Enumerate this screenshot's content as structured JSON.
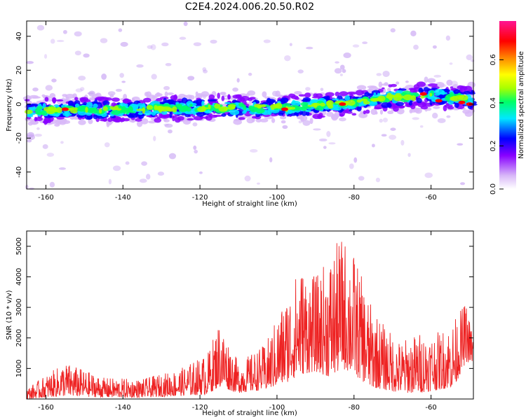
{
  "title": "C2E4.2024.006.20.50.R02",
  "chart_data": [
    {
      "type": "heatmap",
      "name": "spectrogram",
      "xlabel": "Height of straight line (km)",
      "ylabel": "Frequency (Hz)",
      "xlim": [
        -165,
        -49
      ],
      "ylim": [
        -50,
        49
      ],
      "x_ticks": [
        -160,
        -140,
        -120,
        -100,
        -80,
        -60
      ],
      "y_ticks": [
        -40,
        -20,
        0,
        20,
        40
      ],
      "ridge_center_hz": [
        {
          "x": -165,
          "y": -4
        },
        {
          "x": -140,
          "y": -3
        },
        {
          "x": -120,
          "y": -2
        },
        {
          "x": -100,
          "y": -2
        },
        {
          "x": -90,
          "y": -1
        },
        {
          "x": -80,
          "y": 1
        },
        {
          "x": -70,
          "y": 4
        },
        {
          "x": -60,
          "y": 5
        },
        {
          "x": -50,
          "y": 3
        }
      ],
      "colorbar": {
        "label": "Normalized spectral amplitude",
        "range": [
          0,
          0.78
        ],
        "ticks": [
          0.0,
          0.2,
          0.4,
          0.6
        ],
        "colormap": [
          "#ffffff",
          "#d8b8f8",
          "#8800ff",
          "#0000ff",
          "#00e8ff",
          "#00ff66",
          "#a8ff00",
          "#ffff00",
          "#ff8800",
          "#ff0000",
          "#ff1493"
        ]
      },
      "grid": false
    },
    {
      "type": "line",
      "name": "snr",
      "xlabel": "Height of straight line (km)",
      "ylabel": "SNR (10 * v/v)",
      "xlim": [
        -165,
        -49
      ],
      "ylim": [
        0,
        5500
      ],
      "x_ticks": [
        -160,
        -140,
        -120,
        -100,
        -80,
        -60
      ],
      "y_ticks": [
        1000,
        2000,
        3000,
        4000,
        5000
      ],
      "series": [
        {
          "color": "#ee2222",
          "envelope": [
            {
              "x": -165,
              "lo": 0,
              "hi": 350
            },
            {
              "x": -155,
              "lo": 100,
              "hi": 1200
            },
            {
              "x": -145,
              "lo": 50,
              "hi": 700
            },
            {
              "x": -135,
              "lo": 50,
              "hi": 650
            },
            {
              "x": -125,
              "lo": 100,
              "hi": 1000
            },
            {
              "x": -118,
              "lo": 150,
              "hi": 1500
            },
            {
              "x": -115,
              "lo": 400,
              "hi": 2600
            },
            {
              "x": -110,
              "lo": 200,
              "hi": 1200
            },
            {
              "x": -103,
              "lo": 300,
              "hi": 1800
            },
            {
              "x": -98,
              "lo": 500,
              "hi": 3300
            },
            {
              "x": -94,
              "lo": 800,
              "hi": 4400
            },
            {
              "x": -90,
              "lo": 900,
              "hi": 4000
            },
            {
              "x": -86,
              "lo": 700,
              "hi": 4800
            },
            {
              "x": -83,
              "lo": 1000,
              "hi": 5400
            },
            {
              "x": -80,
              "lo": 800,
              "hi": 4800
            },
            {
              "x": -76,
              "lo": 400,
              "hi": 3200
            },
            {
              "x": -72,
              "lo": 300,
              "hi": 2400
            },
            {
              "x": -68,
              "lo": 200,
              "hi": 1900
            },
            {
              "x": -63,
              "lo": 200,
              "hi": 2200
            },
            {
              "x": -58,
              "lo": 300,
              "hi": 2200
            },
            {
              "x": -54,
              "lo": 400,
              "hi": 2600
            },
            {
              "x": -51,
              "lo": 1200,
              "hi": 3200
            },
            {
              "x": -49,
              "lo": 1200,
              "hi": 2100
            }
          ]
        }
      ],
      "grid": false
    }
  ]
}
